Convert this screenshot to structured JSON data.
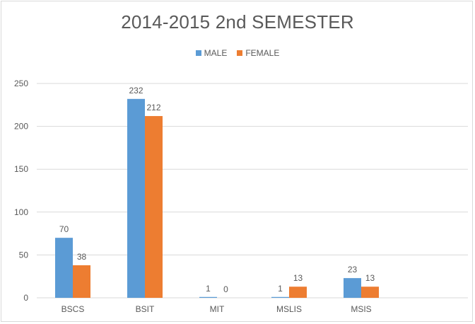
{
  "chart_data": {
    "type": "bar",
    "title": "2014-2015 2nd SEMESTER",
    "categories": [
      "BSCS",
      "BSIT",
      "MIT",
      "MSLIS",
      "MSIS"
    ],
    "series": [
      {
        "name": "MALE",
        "color": "#5b9bd5",
        "values": [
          70,
          232,
          1,
          1,
          23
        ]
      },
      {
        "name": "FEMALE",
        "color": "#ed7d31",
        "values": [
          38,
          212,
          0,
          13,
          13
        ]
      }
    ],
    "ylim": [
      0,
      250
    ],
    "yticks": [
      0,
      50,
      100,
      150,
      200,
      250
    ],
    "grid": true,
    "legend": "top-center"
  }
}
